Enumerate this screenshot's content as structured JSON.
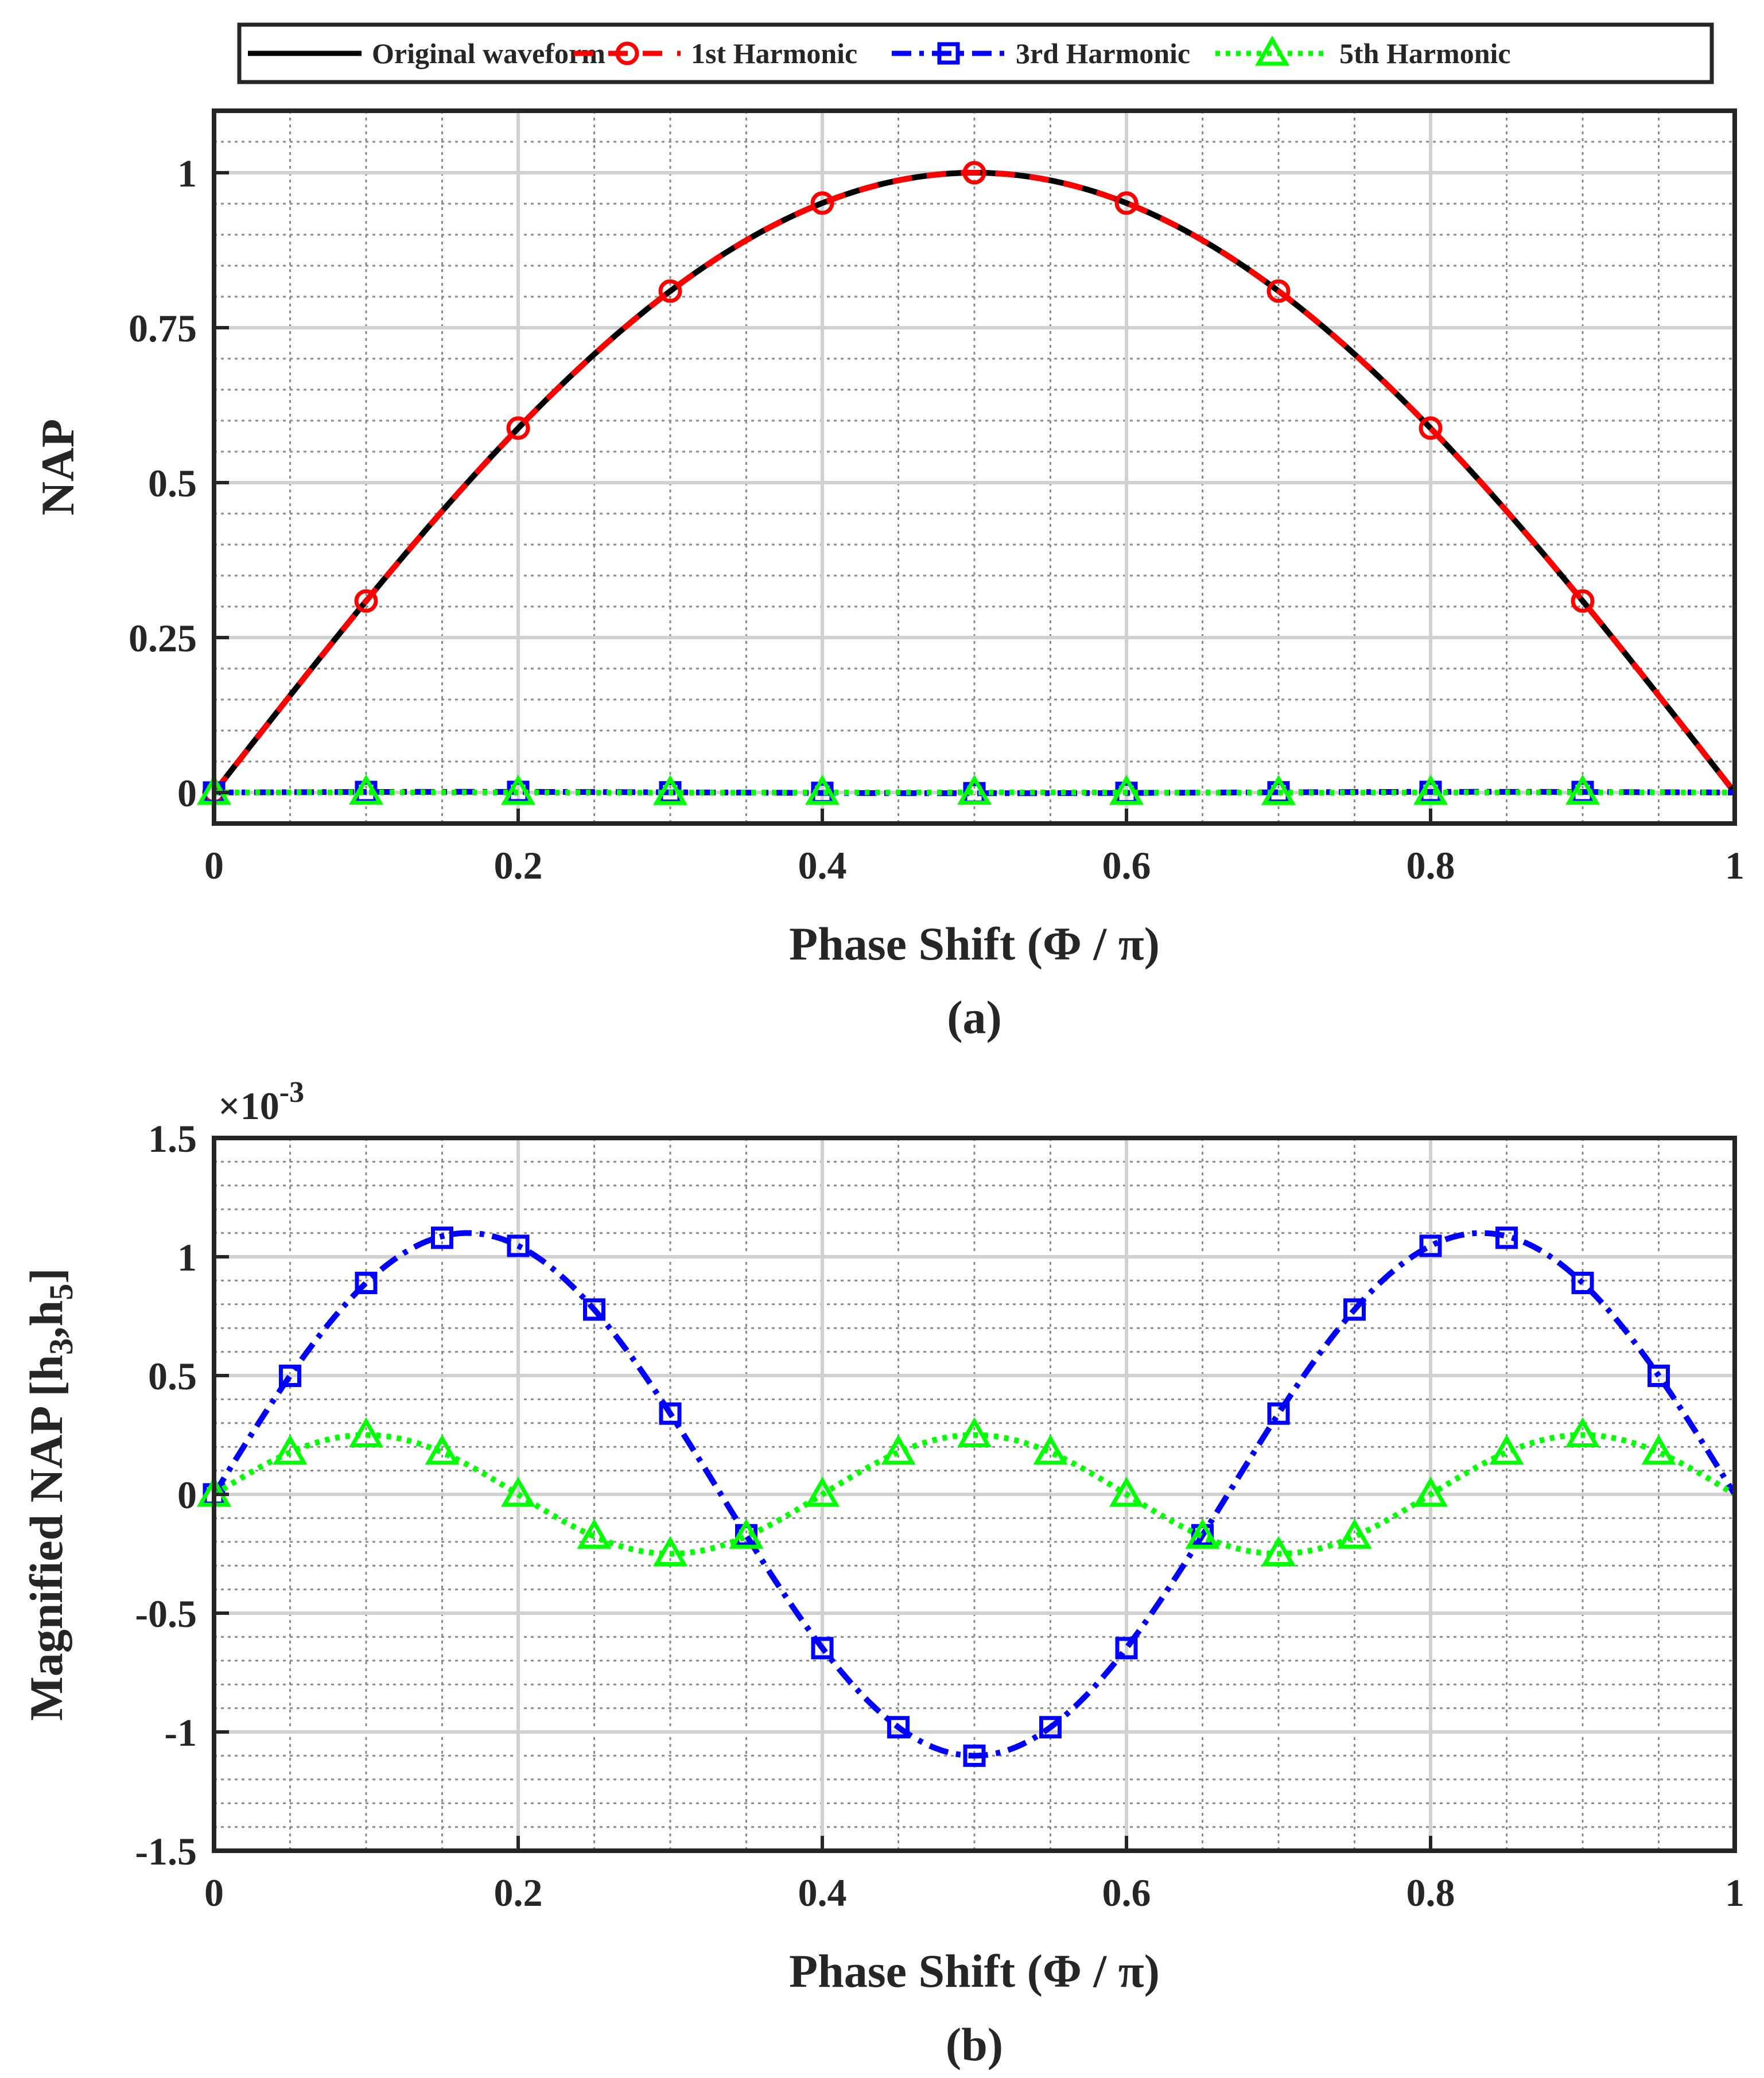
{
  "legend": {
    "entries": [
      {
        "label": "Original waveform",
        "color": "#000000",
        "style": "solid",
        "marker": "none"
      },
      {
        "label": "1st Harmonic",
        "color": "#ff0000",
        "style": "dashed",
        "marker": "circle"
      },
      {
        "label": "3rd Harmonic",
        "color": "#0000ff",
        "style": "dashdot",
        "marker": "square"
      },
      {
        "label": "5th Harmonic",
        "color": "#00ff00",
        "style": "dotted",
        "marker": "triangle"
      }
    ],
    "placement": "top-center"
  },
  "chart_data": [
    {
      "type": "line",
      "caption": "(a)",
      "xlabel": "Phase Shift (Φ / π)",
      "ylabel": "NAP",
      "xlim": [
        0,
        1
      ],
      "ylim": [
        -0.05,
        1.1
      ],
      "xticks": [
        0,
        0.2,
        0.4,
        0.6,
        0.8,
        1
      ],
      "xtick_labels": [
        "0",
        "0.2",
        "0.4",
        "0.6",
        "0.8",
        "1"
      ],
      "yticks": [
        0,
        0.25,
        0.5,
        0.75,
        1
      ],
      "ytick_labels": [
        "0",
        "0.25",
        "0.5",
        "0.75",
        "1"
      ],
      "grid": true,
      "series": [
        {
          "name": "Original waveform",
          "function": "sin",
          "amplitude": 1,
          "frequency": 1,
          "markers": []
        },
        {
          "name": "1st Harmonic",
          "function": "sin",
          "amplitude": 1,
          "frequency": 1,
          "x": [
            0,
            0.1,
            0.2,
            0.3,
            0.4,
            0.5,
            0.6,
            0.7,
            0.8,
            0.9
          ],
          "y": [
            0,
            0.309,
            0.588,
            0.809,
            0.951,
            1.0,
            0.951,
            0.809,
            0.588,
            0.309
          ]
        },
        {
          "name": "3rd Harmonic",
          "function": "sin",
          "amplitude": 0.0011,
          "frequency": 3,
          "x": [
            0,
            0.1,
            0.2,
            0.3,
            0.4,
            0.5,
            0.6,
            0.7,
            0.8,
            0.9
          ],
          "y": [
            0,
            0.0009,
            0.001,
            0.0003,
            -0.0006,
            -0.0011,
            -0.0006,
            0.0003,
            0.001,
            0.0009
          ]
        },
        {
          "name": "5th Harmonic",
          "function": "sin",
          "amplitude": 0.00025,
          "frequency": 5,
          "x": [
            0,
            0.1,
            0.2,
            0.3,
            0.4,
            0.5,
            0.6,
            0.7,
            0.8,
            0.9
          ],
          "y": [
            0,
            0.00025,
            0,
            -0.00025,
            0,
            0.00025,
            0,
            -0.00025,
            0,
            0.00025
          ]
        }
      ]
    },
    {
      "type": "line",
      "caption": "(b)",
      "xlabel": "Phase Shift (Φ / π)",
      "ylabel_main": "Magnified NAP [h",
      "ylabel_sub1": "3",
      "ylabel_mid": ",h",
      "ylabel_sub2": "5",
      "ylabel_end": "]",
      "exponent_prefix": "×10",
      "exponent_power": "-3",
      "xlim": [
        0,
        1
      ],
      "ylim": [
        -1.5,
        1.5
      ],
      "xticks": [
        0,
        0.2,
        0.4,
        0.6,
        0.8,
        1
      ],
      "xtick_labels": [
        "0",
        "0.2",
        "0.4",
        "0.6",
        "0.8",
        "1"
      ],
      "yticks": [
        -1.5,
        -1,
        -0.5,
        0,
        0.5,
        1,
        1.5
      ],
      "ytick_labels": [
        "-1.5",
        "-1",
        "-0.5",
        "0",
        "0.5",
        "1",
        "1.5"
      ],
      "grid": true,
      "series": [
        {
          "name": "3rd Harmonic",
          "function": "sin",
          "amplitude": 1.1,
          "frequency": 3,
          "x": [
            0,
            0.05,
            0.1,
            0.15,
            0.2,
            0.25,
            0.3,
            0.35,
            0.4,
            0.45,
            0.5,
            0.55,
            0.6,
            0.65,
            0.7,
            0.75,
            0.8,
            0.85,
            0.9,
            0.95
          ],
          "y": [
            0,
            0.499,
            0.89,
            1.08,
            1.046,
            0.778,
            0.34,
            -0.172,
            -0.647,
            -0.98,
            -1.1,
            -0.98,
            -0.647,
            -0.172,
            0.34,
            0.778,
            1.046,
            1.08,
            0.89,
            0.499
          ]
        },
        {
          "name": "5th Harmonic",
          "function": "sin",
          "amplitude": 0.25,
          "frequency": 5,
          "x": [
            0,
            0.05,
            0.1,
            0.15,
            0.2,
            0.25,
            0.3,
            0.35,
            0.4,
            0.45,
            0.5,
            0.55,
            0.6,
            0.65,
            0.7,
            0.75,
            0.8,
            0.85,
            0.9,
            0.95
          ],
          "y": [
            0,
            0.177,
            0.25,
            0.177,
            0,
            -0.177,
            -0.25,
            -0.177,
            0,
            0.177,
            0.25,
            0.177,
            0,
            -0.177,
            -0.25,
            -0.177,
            0,
            0.177,
            0.25,
            0.177
          ]
        }
      ]
    }
  ]
}
